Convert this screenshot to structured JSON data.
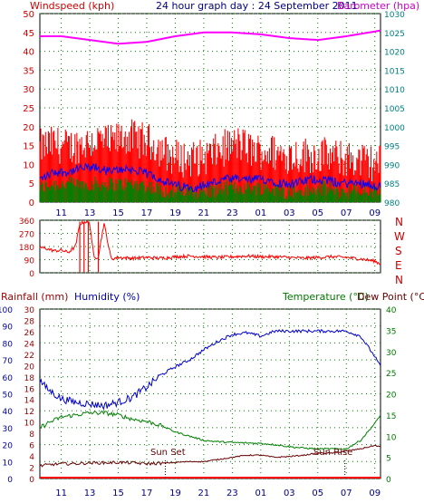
{
  "header": {
    "windspeed_label": "Windspeed (kph)",
    "title": "24 hour graph day : 24 September 2011",
    "barometer_label": "Barometer (hpa)"
  },
  "time_ticks": [
    "11",
    "13",
    "15",
    "17",
    "19",
    "21",
    "23",
    "01",
    "03",
    "05",
    "07",
    "09"
  ],
  "colors": {
    "wind_max": "#ff0000",
    "wind_avg": "#0000ff",
    "wind_min": "#008000",
    "barometer": "#ff00ff",
    "direction": "#ff0000",
    "humidity": "#0000cc",
    "temperature": "#008000",
    "dewpoint": "#660000",
    "rainfall": "#ff0000",
    "grid": "#008000",
    "left_axis_text": "#cc0000",
    "right_axis_text": "#008080"
  },
  "chart_data": [
    {
      "type": "line",
      "title": "24 hour graph day : 24 September 2011",
      "ylabel_left": "Windspeed (kph)",
      "ylabel_right": "Barometer (hpa)",
      "y_left_ticks": [
        "0",
        "5",
        "10",
        "15",
        "20",
        "25",
        "30",
        "35",
        "40",
        "45",
        "50"
      ],
      "y_right_ticks": [
        "980",
        "985",
        "990",
        "995",
        "1000",
        "1005",
        "1010",
        "1015",
        "1020",
        "1025",
        "1030"
      ],
      "ylim_left": [
        0,
        50
      ],
      "ylim_right": [
        980,
        1030
      ],
      "x_ticks": [
        "11",
        "13",
        "15",
        "17",
        "19",
        "21",
        "23",
        "01",
        "03",
        "05",
        "07",
        "09"
      ],
      "x_range_hours": [
        9.5,
        33.4
      ],
      "series": [
        {
          "key": "gust",
          "hours": [
            9.5,
            10.5,
            11.5,
            12.5,
            13.5,
            14.5,
            15.5,
            16.5,
            17.5,
            18.5,
            19.5,
            20.5,
            21.5,
            22.5,
            23.5,
            24.5,
            25.5,
            26.5,
            27.5,
            28.5,
            29.5,
            30.5,
            31.5,
            32.5,
            33.4
          ],
          "values": [
            13,
            14,
            13,
            14,
            15,
            14,
            16,
            15,
            14,
            11,
            10,
            10,
            11,
            13,
            14,
            12,
            12,
            11,
            11,
            11,
            11,
            10,
            10,
            9,
            9
          ]
        },
        {
          "key": "avg",
          "hours": [
            9.5,
            10.5,
            11.5,
            12.5,
            13.5,
            14.5,
            15.5,
            16.5,
            17.5,
            18.5,
            19.5,
            20.5,
            21.5,
            22.5,
            23.5,
            24.5,
            25.5,
            26.5,
            27.5,
            28.5,
            29.5,
            30.5,
            31.5,
            32.5,
            33.4
          ],
          "values": [
            6,
            8,
            8,
            9,
            9,
            8,
            9,
            8,
            7,
            5,
            4,
            4,
            5,
            6,
            6,
            6,
            6,
            5,
            5,
            6,
            6,
            5,
            5,
            5,
            4
          ]
        },
        {
          "key": "min",
          "hours": [
            9.5,
            10.5,
            11.5,
            12.5,
            13.5,
            14.5,
            15.5,
            16.5,
            17.5,
            18.5,
            19.5,
            20.5,
            21.5,
            22.5,
            23.5,
            24.5,
            25.5,
            26.5,
            27.5,
            28.5,
            29.5,
            30.5,
            31.5,
            32.5,
            33.4
          ],
          "values": [
            3,
            4,
            4,
            4,
            4,
            4,
            4,
            4,
            3,
            2,
            2,
            2,
            2,
            3,
            3,
            3,
            3,
            2,
            2,
            2,
            3,
            2,
            2,
            2,
            2
          ]
        },
        {
          "key": "barometer",
          "hours": [
            9.5,
            11,
            13,
            15,
            17,
            19,
            21,
            23,
            25,
            27,
            29,
            31,
            33.4
          ],
          "values": [
            1024,
            1024,
            1023,
            1022,
            1022.5,
            1024,
            1025,
            1025,
            1024.5,
            1023.5,
            1023,
            1024,
            1025.5
          ]
        }
      ]
    },
    {
      "type": "scatter",
      "ylabel_right": [
        "N",
        "W",
        "S",
        "E",
        "N"
      ],
      "y_left_ticks": [
        "0",
        "90",
        "180",
        "270",
        "360"
      ],
      "ylim": [
        0,
        360
      ],
      "series": [
        {
          "key": "direction",
          "hours": [
            9.5,
            10,
            10.5,
            11,
            11.5,
            12,
            12.3,
            12.7,
            13,
            13.3,
            13.6,
            14,
            14.5,
            15,
            16,
            17,
            18,
            19,
            20,
            21,
            22,
            23,
            24,
            25,
            26,
            27,
            28,
            29,
            30,
            31,
            32,
            33,
            33.4
          ],
          "values": [
            175,
            165,
            150,
            155,
            140,
            180,
            335,
            350,
            340,
            100,
            110,
            340,
            95,
            105,
            100,
            105,
            100,
            110,
            115,
            110,
            105,
            110,
            115,
            110,
            110,
            105,
            100,
            105,
            110,
            105,
            95,
            80,
            60
          ]
        }
      ]
    },
    {
      "type": "line",
      "ylabel_left_1": "Rainfall (mm)",
      "ylabel_left_2": "Humidity (%)",
      "ylabel_right_1": "Temperature (°C)",
      "ylabel_right_2": "Dew Point (°C)",
      "y_humidity_ticks": [
        "0",
        "10",
        "20",
        "30",
        "40",
        "50",
        "60",
        "70",
        "80",
        "90",
        "100"
      ],
      "y_rain_ticks": [
        "0",
        "2",
        "4",
        "6",
        "8",
        "10",
        "12",
        "14",
        "16",
        "18",
        "20",
        "22",
        "24",
        "26",
        "28",
        "30"
      ],
      "y_temp_ticks": [
        "0",
        "5",
        "10",
        "15",
        "20",
        "25",
        "30",
        "35",
        "40"
      ],
      "ylim_humidity": [
        0,
        100
      ],
      "ylim_temp": [
        0,
        40
      ],
      "annotations": [
        {
          "text": "Sun Set",
          "hour": 18.3
        },
        {
          "text": "Sun Rise",
          "hour": 30.9
        }
      ],
      "series": [
        {
          "key": "humidity",
          "hours": [
            9.5,
            10,
            11,
            12,
            13,
            14,
            15,
            16,
            17,
            18,
            19,
            20,
            21,
            22,
            23,
            24,
            25,
            26,
            27,
            28,
            29,
            30,
            31,
            32,
            33,
            33.4
          ],
          "values": [
            58,
            53,
            47,
            45,
            44,
            43,
            45,
            48,
            54,
            61,
            66,
            70,
            76,
            81,
            85,
            86,
            84,
            87,
            87,
            87,
            87,
            87,
            87,
            84,
            72,
            66
          ]
        },
        {
          "key": "temperature",
          "hours": [
            9.5,
            10,
            11,
            12,
            13,
            14,
            15,
            16,
            17,
            18,
            19,
            20,
            21,
            22,
            23,
            24,
            25,
            26,
            27,
            28,
            29,
            30,
            31,
            32,
            33,
            33.4
          ],
          "values": [
            12,
            13,
            14.5,
            15,
            15.5,
            15.5,
            15,
            14,
            13.5,
            12.5,
            11,
            10,
            9,
            8.7,
            8.5,
            8.4,
            8.3,
            8,
            7.5,
            7.2,
            7,
            7,
            7,
            9,
            13,
            15
          ]
        },
        {
          "key": "dewpoint",
          "hours": [
            9.5,
            10,
            11,
            12,
            13,
            14,
            15,
            16,
            17,
            18,
            19,
            20,
            21,
            22,
            23,
            24,
            25,
            26,
            27,
            28,
            29,
            30,
            31,
            32,
            33,
            33.4
          ],
          "values": [
            3,
            3.2,
            3.5,
            3.5,
            3.7,
            3.7,
            3.8,
            3.7,
            3.5,
            3.6,
            3.8,
            4,
            4,
            4.5,
            5,
            5.5,
            5.5,
            5,
            5.2,
            5.5,
            6,
            6,
            6.5,
            7,
            7.8,
            7.5
          ]
        }
      ]
    }
  ],
  "panel3_labels": {
    "rain": "Rainfall (mm)",
    "humidity": "Humidity (%)",
    "temperature": "Temperature (°C)",
    "dewpoint": "Dew Point (°C)",
    "sunset": "Sun Set",
    "sunrise": "Sun Rise"
  },
  "compass_labels": [
    "N",
    "W",
    "S",
    "E",
    "N"
  ]
}
